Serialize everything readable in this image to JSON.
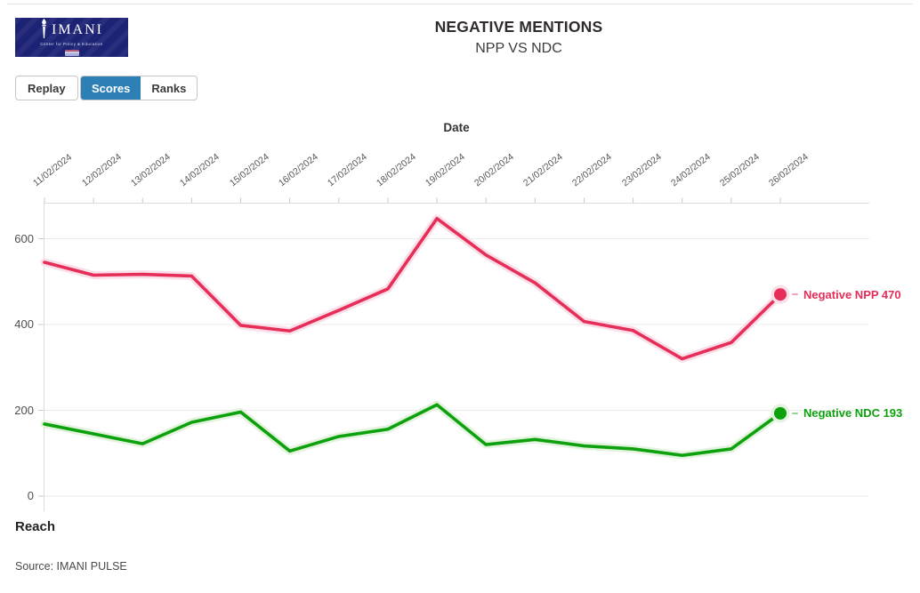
{
  "logo": {
    "wordmark": "IMANI",
    "tagline": "Center for Policy & Education",
    "icon": "torch-icon",
    "bg_color": "#1c2374"
  },
  "header": {
    "title": "NEGATIVE MENTIONS",
    "subtitle": "NPP VS NDC"
  },
  "toolbar": {
    "replay_label": "Replay",
    "scores_label": "Scores",
    "ranks_label": "Ranks",
    "active_tab": "Scores",
    "active_tab_color": "#2d80b5"
  },
  "chart_data": {
    "type": "line",
    "title": "NEGATIVE MENTIONS",
    "subtitle": "NPP VS NDC",
    "xlabel": "Date",
    "ylabel": "Reach",
    "x_axis_position": "top",
    "grid": "horizontal",
    "ylim": [
      0,
      680
    ],
    "yticks": [
      0,
      200,
      400,
      600
    ],
    "legend_position": "end-of-line",
    "categories": [
      "11/02/2024",
      "12/02/2024",
      "13/02/2024",
      "14/02/2024",
      "15/02/2024",
      "16/02/2024",
      "17/02/2024",
      "18/02/2024",
      "19/02/2024",
      "20/02/2024",
      "21/02/2024",
      "22/02/2024",
      "23/02/2024",
      "24/02/2024",
      "25/02/2024",
      "26/02/2024"
    ],
    "series": [
      {
        "name": "Negative NPP",
        "end_label": "Negative NPP 470",
        "end_value": 470,
        "color": "#e62e58",
        "halo_color": "#fbdfe8",
        "values": [
          545,
          515,
          517,
          513,
          398,
          385,
          433,
          483,
          647,
          562,
          497,
          407,
          386,
          320,
          358,
          470
        ]
      },
      {
        "name": "Negative NDC",
        "end_label": "Negative NDC 193",
        "end_value": 193,
        "color": "#0da20d",
        "halo_color": "#e3f3de",
        "values": [
          168,
          145,
          122,
          172,
          196,
          105,
          139,
          156,
          213,
          120,
          132,
          117,
          110,
          95,
          110,
          193
        ]
      }
    ]
  },
  "footer": {
    "source": "Source: IMANI PULSE"
  }
}
